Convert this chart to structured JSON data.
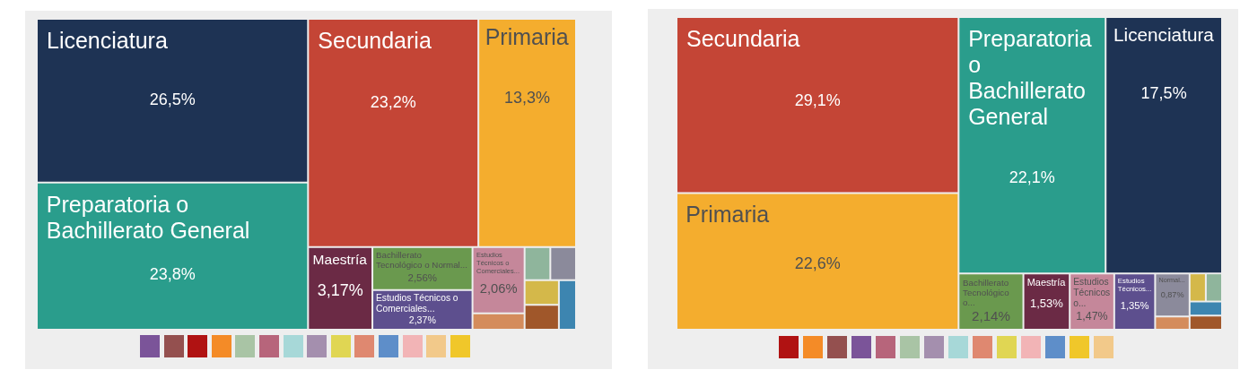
{
  "chart_data": [
    {
      "type": "other",
      "categories": [
        "Licenciatura",
        "Preparatoria o Bachillerato General",
        "Secundaria",
        "Primaria",
        "Maestría",
        "Bachillerato Tecnológico o Normal...",
        "Estudios Técnicos o Comerciales...",
        "Estudios Técnicos o Comerciales...",
        null,
        null,
        null,
        null,
        null,
        null
      ],
      "values": [
        26.5,
        23.8,
        23.2,
        13.3,
        3.17,
        2.56,
        2.37,
        2.06,
        null,
        null,
        null,
        null,
        null,
        null
      ],
      "value_labels": [
        "26,5%",
        "23,8%",
        "23,2%",
        "13,3%",
        "3,17%",
        "2,56%",
        "2,37%",
        "2,06%",
        null,
        null,
        null,
        null,
        null,
        null
      ],
      "colors": [
        "#1e3354",
        "#2a9d8c",
        "#c44536",
        "#f4ad2e",
        "#6b2a45",
        "#6a994e",
        "#5d4f8e",
        "#c5879a",
        "#d48c5c",
        "#8fb59c",
        "#8b8a9b",
        "#d4b84a",
        "#a0572a",
        "#3d85b0"
      ]
    },
    {
      "type": "other",
      "categories": [
        "Secundaria",
        "Primaria",
        "Preparatoria o Bachillerato General",
        "Licenciatura",
        "Bachillerato Tecnológico o...",
        "Maestría",
        "Estudios Técnicos o...",
        "Estudios Técnicos...",
        "Normal...",
        null,
        null,
        null,
        null,
        null
      ],
      "values": [
        29.1,
        22.6,
        22.1,
        17.5,
        2.14,
        1.53,
        1.47,
        1.35,
        0.87,
        null,
        null,
        null,
        null,
        null
      ],
      "value_labels": [
        "29,1%",
        "22,6%",
        "22,1%",
        "17,5%",
        "2,14%",
        "1,53%",
        "1,47%",
        "1,35%",
        "0,87%",
        null,
        null,
        null,
        null,
        null
      ],
      "colors": [
        "#c44536",
        "#f4ad2e",
        "#2a9d8c",
        "#1e3354",
        "#6a994e",
        "#6b2a45",
        "#c5879a",
        "#5d4f8e",
        "#8b8a9b",
        "#d48c5c",
        "#d4b84a",
        "#8fb59c",
        "#3d85b0",
        "#a0572a"
      ]
    }
  ]
}
